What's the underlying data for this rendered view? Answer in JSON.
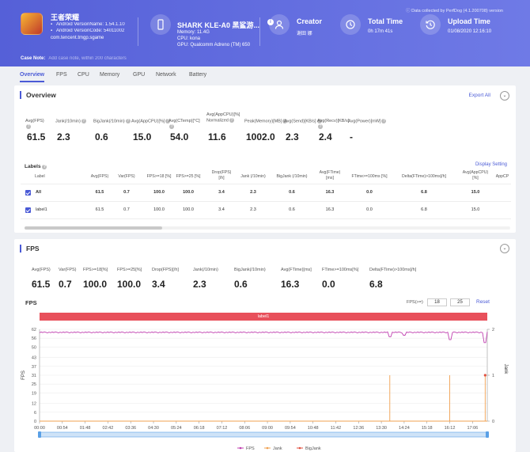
{
  "header": {
    "app_name": "王者荣耀",
    "version_name": "Android VersionName: 1.54.1.10",
    "version_code": "Android VersionCode: 54011002",
    "package": "com.tencent.tmgp.sgame",
    "device_name": "SHARK KLE-A0 黑鲨游...",
    "memory": "Memory: 11.4G",
    "cpu": "CPU: kona",
    "gpu": "GPU: Qualcomm Adreno (TM) 650",
    "creator_label": "Creator",
    "creator_value": "谢田 娜",
    "total_time_label": "Total Time",
    "total_time_value": "0h 17m 41s",
    "upload_time_label": "Upload Time",
    "upload_time_value": "01/08/2020 12:16:10",
    "collected": "Data collected by PerfDog (4.1.200708) version",
    "case_note_label": "Case Note:",
    "case_note_placeholder": "Add case note, within 200 characters"
  },
  "tabs": [
    "Overview",
    "FPS",
    "CPU",
    "Memory",
    "GPU",
    "Network",
    "Battery"
  ],
  "overview": {
    "title": "Overview",
    "export": "Export All",
    "metrics": [
      {
        "label": "Avg(FPS)",
        "value": "61.5"
      },
      {
        "label": "Jank(/10min)",
        "value": "2.3"
      },
      {
        "label": "BigJank(/10min)",
        "value": "0.6"
      },
      {
        "label": "Avg(AppCPU)[%]",
        "value": "15.0"
      },
      {
        "label": "Avg(CTemp)[°C]",
        "value": "54.0"
      },
      {
        "label": "Avg(AppCPU)[%]\nNormalized",
        "value": "11.6"
      },
      {
        "label": "Peak(Memory)[MB]",
        "value": "1002.0"
      },
      {
        "label": "Avg(Send)[KB/s]",
        "value": "2.3"
      },
      {
        "label": "Avg(Recv)[KB/s]",
        "value": "2.4"
      },
      {
        "label": "Avg(Power)[mW]",
        "value": "-"
      }
    ],
    "labels_title": "Labels",
    "display_setting": "Display Setting",
    "columns": [
      "Label",
      "Avg(FPS)",
      "Var(FPS)",
      "FPS>=18 [%]",
      "FPS>=25 [%]",
      "Drop(FPS)\n[/h]",
      "Jank (/10min)",
      "BigJank (/10min)",
      "Avg(FTime)\n[ms]",
      "FTime>=100ms [%]",
      "Delta(FTime)>100ms[/h]",
      "Avg(AppCPU)\n[%]",
      "AppCP"
    ],
    "rows": [
      [
        "All",
        "61.5",
        "0.7",
        "100.0",
        "100.0",
        "3.4",
        "2.3",
        "0.6",
        "16.3",
        "0.0",
        "6.8",
        "15.0",
        ""
      ],
      [
        "label1",
        "61.5",
        "0.7",
        "100.0",
        "100.0",
        "3.4",
        "2.3",
        "0.6",
        "16.3",
        "0.0",
        "6.8",
        "15.0",
        ""
      ]
    ]
  },
  "fps": {
    "title": "FPS",
    "metrics": [
      {
        "label": "Avg(FPS)",
        "value": "61.5"
      },
      {
        "label": "Var(FPS)",
        "value": "0.7"
      },
      {
        "label": "FPS>=18[%]",
        "value": "100.0"
      },
      {
        "label": "FPS>=25[%]",
        "value": "100.0"
      },
      {
        "label": "Drop(FPS)[/h]",
        "value": "3.4"
      },
      {
        "label": "Jank(/10min)",
        "value": "2.3"
      },
      {
        "label": "BigJank(/10min)",
        "value": "0.6"
      },
      {
        "label": "Avg(FTime)[ms]",
        "value": "16.3"
      },
      {
        "label": "FTime>=100ms[%]",
        "value": "0.0"
      },
      {
        "label": "Delta(FTime)>100ms[/h]",
        "value": "6.8"
      }
    ],
    "chart_title": "FPS",
    "threshold_label": "FPS(>=)",
    "threshold_1": "18",
    "threshold_2": "25",
    "reset": "Reset",
    "label_bar": "label1"
  },
  "chart_data": {
    "type": "line",
    "title": "FPS",
    "ylabel": "FPS",
    "y2label": "Jank",
    "ylim": [
      0,
      62
    ],
    "y2lim": [
      0,
      2
    ],
    "yticks": [
      0,
      6,
      12,
      19,
      25,
      31,
      37,
      43,
      50,
      56,
      62
    ],
    "y2ticks": [
      0,
      1,
      2
    ],
    "x": [
      "00:00",
      "00:54",
      "01:48",
      "02:42",
      "03:36",
      "04:30",
      "05:24",
      "06:18",
      "07:12",
      "08:06",
      "09:00",
      "09:54",
      "10:48",
      "11:42",
      "12:36",
      "13:30",
      "14:24",
      "15:18",
      "16:12",
      "17:06"
    ],
    "legend_position": "bottom",
    "series": [
      {
        "name": "FPS",
        "color": "#c040b0",
        "baseline": 60,
        "dips": [
          {
            "t": "13:50",
            "value": 57
          },
          {
            "t": "14:24",
            "value": 58
          },
          {
            "t": "16:12",
            "value": 55
          },
          {
            "t": "17:36",
            "value": 53
          }
        ]
      },
      {
        "name": "Jank",
        "color": "#f0a050",
        "events": [
          {
            "t": "13:50",
            "value": 1
          },
          {
            "t": "16:12",
            "value": 1
          },
          {
            "t": "17:36",
            "value": 1
          }
        ]
      },
      {
        "name": "BigJank",
        "color": "#e05040",
        "events": [
          {
            "t": "17:36",
            "value": 1
          }
        ]
      }
    ]
  }
}
